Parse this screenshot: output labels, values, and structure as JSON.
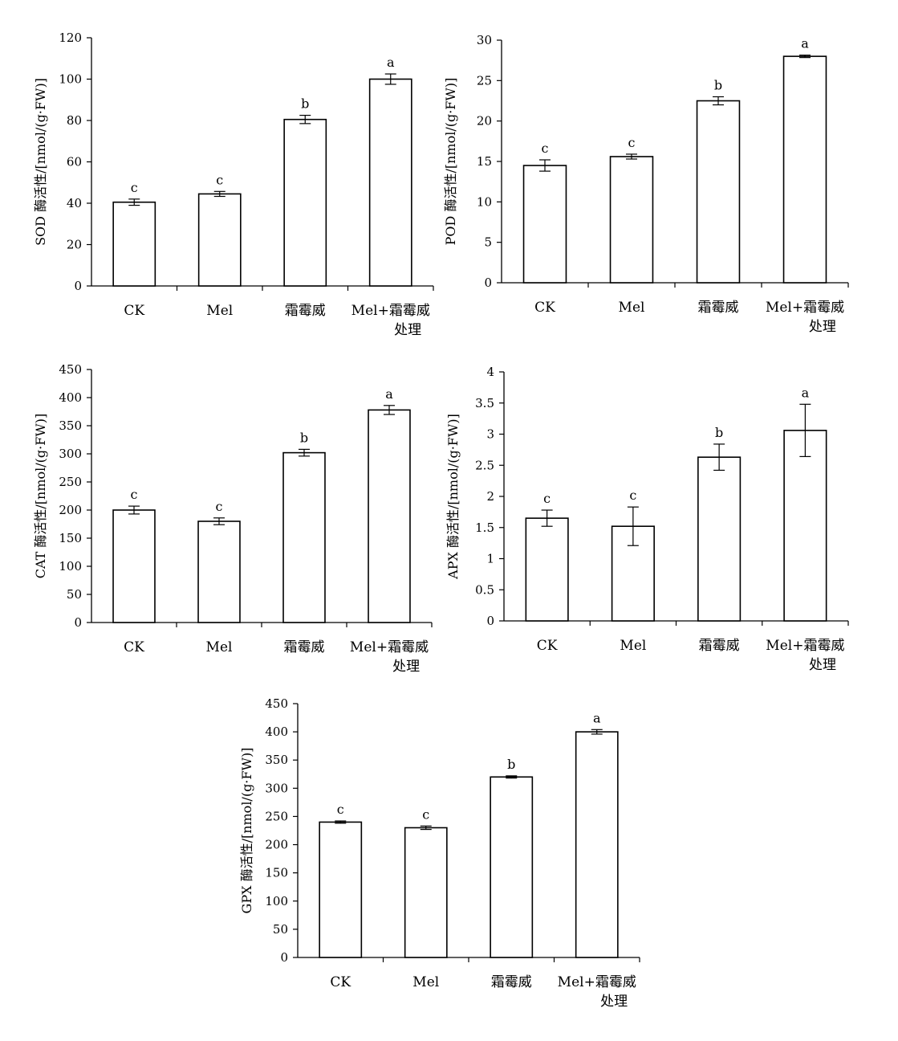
{
  "chart_data": [
    {
      "type": "bar",
      "ylabel": "SOD 酶活性/[nmol/(g·FW)]",
      "categories": [
        [
          "CK"
        ],
        [
          "Mel"
        ],
        [
          "霜霉威"
        ],
        [
          "Mel+霜霉威",
          "处理"
        ]
      ],
      "values": [
        40.5,
        44.5,
        80.5,
        100.0
      ],
      "errors": [
        1.5,
        1.2,
        2.0,
        2.5
      ],
      "letters": [
        "c",
        "c",
        "b",
        "a"
      ],
      "ylim": [
        0,
        120
      ],
      "yticks": [
        "0",
        "20",
        "40",
        "60",
        "80",
        "100",
        "120"
      ],
      "grid": false,
      "legend": "none"
    },
    {
      "type": "bar",
      "ylabel": "POD 酶活性/[nmol/(g·FW)]",
      "categories": [
        [
          "CK"
        ],
        [
          "Mel"
        ],
        [
          "霜霉威"
        ],
        [
          "Mel+霜霉威",
          "处理"
        ]
      ],
      "values": [
        14.5,
        15.6,
        22.5,
        28.0
      ],
      "errors": [
        0.7,
        0.3,
        0.5,
        0.15
      ],
      "letters": [
        "c",
        "c",
        "b",
        "a"
      ],
      "ylim": [
        0,
        30
      ],
      "yticks": [
        "0",
        "5",
        "10",
        "15",
        "20",
        "25",
        "30"
      ],
      "grid": false,
      "legend": "none"
    },
    {
      "type": "bar",
      "ylabel": "CAT 酶活性/[nmol/(g·FW)]",
      "categories": [
        [
          "CK"
        ],
        [
          "Mel"
        ],
        [
          "霜霉威"
        ],
        [
          "Mel+霜霉威",
          "处理"
        ]
      ],
      "values": [
        200,
        180,
        302,
        378
      ],
      "errors": [
        7,
        6,
        6,
        8
      ],
      "letters": [
        "c",
        "c",
        "b",
        "a"
      ],
      "ylim": [
        0,
        450
      ],
      "yticks": [
        "0",
        "50",
        "100",
        "150",
        "200",
        "250",
        "300",
        "350",
        "400",
        "450"
      ],
      "grid": false,
      "legend": "none"
    },
    {
      "type": "bar",
      "ylabel": "APX 酶活性/[nmol/(g·FW)]",
      "categories": [
        [
          "CK"
        ],
        [
          "Mel"
        ],
        [
          "霜霉威"
        ],
        [
          "Mel+霜霉威",
          "处理"
        ]
      ],
      "values": [
        1.65,
        1.52,
        2.63,
        3.06
      ],
      "errors": [
        0.13,
        0.31,
        0.21,
        0.42
      ],
      "letters": [
        "c",
        "c",
        "b",
        "a"
      ],
      "ylim": [
        0,
        4
      ],
      "yticks": [
        "0",
        "0.5",
        "1",
        "1.5",
        "2",
        "2.5",
        "3",
        "3.5",
        "4"
      ],
      "grid": false,
      "legend": "none"
    },
    {
      "type": "bar",
      "ylabel": "GPX 酶活性/[nmol/(g·FW)]",
      "categories": [
        [
          "CK"
        ],
        [
          "Mel"
        ],
        [
          "霜霉威"
        ],
        [
          "Mel+霜霉威",
          "处理"
        ]
      ],
      "values": [
        240,
        230,
        320,
        400
      ],
      "errors": [
        2,
        3,
        2,
        4
      ],
      "letters": [
        "c",
        "c",
        "b",
        "a"
      ],
      "ylim": [
        0,
        450
      ],
      "yticks": [
        "0",
        "50",
        "100",
        "150",
        "200",
        "250",
        "300",
        "350",
        "400",
        "450"
      ],
      "grid": false,
      "legend": "none"
    }
  ]
}
